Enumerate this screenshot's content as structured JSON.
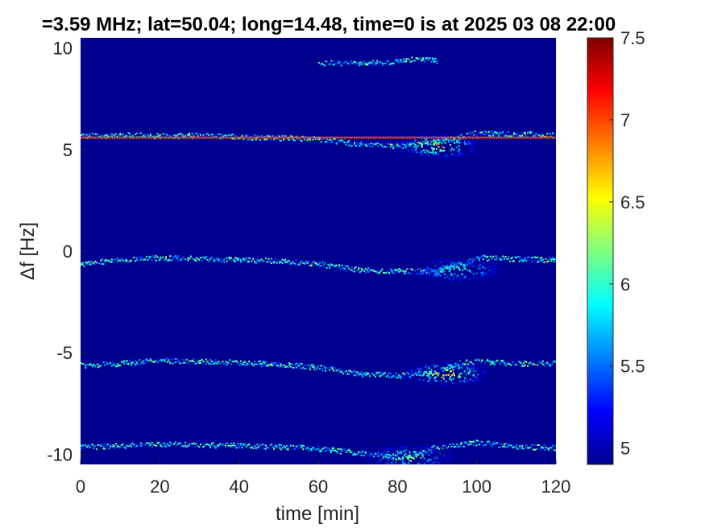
{
  "chart_data": {
    "type": "heatmap",
    "title": "=3.59 MHz;  lat=50.04; long=14.48, time=0 is at 2025 03 08 22:00",
    "xlabel": "time [min]",
    "ylabel": "Δf [Hz]",
    "xlim": [
      0,
      120
    ],
    "ylim": [
      -10.5,
      10.5
    ],
    "xticks": [
      0,
      20,
      40,
      60,
      80,
      100,
      120
    ],
    "xtick_labels": [
      "0",
      "20",
      "40",
      "60",
      "80",
      "100",
      "120"
    ],
    "yticks": [
      10,
      5,
      0,
      -5,
      -10
    ],
    "ytick_labels": [
      "10",
      "5",
      "0",
      "-5",
      "-10"
    ],
    "colorbar": {
      "colormap": "jet",
      "range": [
        4.9,
        7.5
      ],
      "ticks": [
        7.5,
        7,
        6.5,
        6,
        5.5,
        5
      ],
      "tick_labels": [
        "7.5",
        "7",
        "6.5",
        "6",
        "5.5",
        "5"
      ]
    },
    "background_color": "#00008f",
    "carrier_line": {
      "df": 5.6,
      "value": 7.0
    },
    "traces": [
      {
        "base_df": 5.6,
        "points": [
          [
            0,
            5.7
          ],
          [
            10,
            5.75
          ],
          [
            20,
            5.7
          ],
          [
            30,
            5.72
          ],
          [
            40,
            5.65
          ],
          [
            50,
            5.6
          ],
          [
            60,
            5.55
          ],
          [
            70,
            5.3
          ],
          [
            80,
            5.2
          ],
          [
            90,
            5.4
          ],
          [
            95,
            5.6
          ],
          [
            100,
            5.85
          ],
          [
            110,
            5.8
          ],
          [
            120,
            5.75
          ]
        ]
      },
      {
        "base_df": 0.0,
        "points": [
          [
            0,
            -0.6
          ],
          [
            5,
            -0.5
          ],
          [
            10,
            -0.4
          ],
          [
            20,
            -0.3
          ],
          [
            30,
            -0.35
          ],
          [
            40,
            -0.4
          ],
          [
            50,
            -0.45
          ],
          [
            60,
            -0.6
          ],
          [
            70,
            -0.9
          ],
          [
            80,
            -0.95
          ],
          [
            90,
            -1.0
          ],
          [
            95,
            -0.7
          ],
          [
            100,
            -0.3
          ],
          [
            110,
            -0.35
          ],
          [
            120,
            -0.4
          ]
        ]
      },
      {
        "base_df": -5.5,
        "points": [
          [
            0,
            -5.6
          ],
          [
            10,
            -5.5
          ],
          [
            20,
            -5.35
          ],
          [
            30,
            -5.4
          ],
          [
            40,
            -5.45
          ],
          [
            50,
            -5.55
          ],
          [
            60,
            -5.7
          ],
          [
            70,
            -6.0
          ],
          [
            80,
            -6.1
          ],
          [
            90,
            -5.9
          ],
          [
            95,
            -5.5
          ],
          [
            100,
            -5.4
          ],
          [
            110,
            -5.5
          ],
          [
            120,
            -5.5
          ]
        ]
      },
      {
        "base_df": -9.7,
        "points": [
          [
            0,
            -9.6
          ],
          [
            10,
            -9.55
          ],
          [
            20,
            -9.45
          ],
          [
            30,
            -9.5
          ],
          [
            40,
            -9.55
          ],
          [
            50,
            -9.6
          ],
          [
            60,
            -9.7
          ],
          [
            70,
            -9.9
          ],
          [
            80,
            -10.1
          ],
          [
            85,
            -9.95
          ],
          [
            90,
            -9.6
          ],
          [
            100,
            -9.4
          ],
          [
            110,
            -9.6
          ],
          [
            120,
            -9.65
          ]
        ]
      },
      {
        "base_df": 9.3,
        "points": [
          [
            60,
            9.3
          ],
          [
            70,
            9.25
          ],
          [
            80,
            9.35
          ],
          [
            85,
            9.5
          ],
          [
            90,
            9.4
          ]
        ]
      }
    ],
    "hotspots": [
      {
        "x": 90,
        "df": 5.2,
        "value": 7.2
      },
      {
        "x": 95,
        "df": -0.9,
        "value": 6.6
      },
      {
        "x": 92,
        "df": -6.0,
        "value": 7.3
      },
      {
        "x": 83,
        "df": -10.1,
        "value": 6.8
      }
    ]
  }
}
